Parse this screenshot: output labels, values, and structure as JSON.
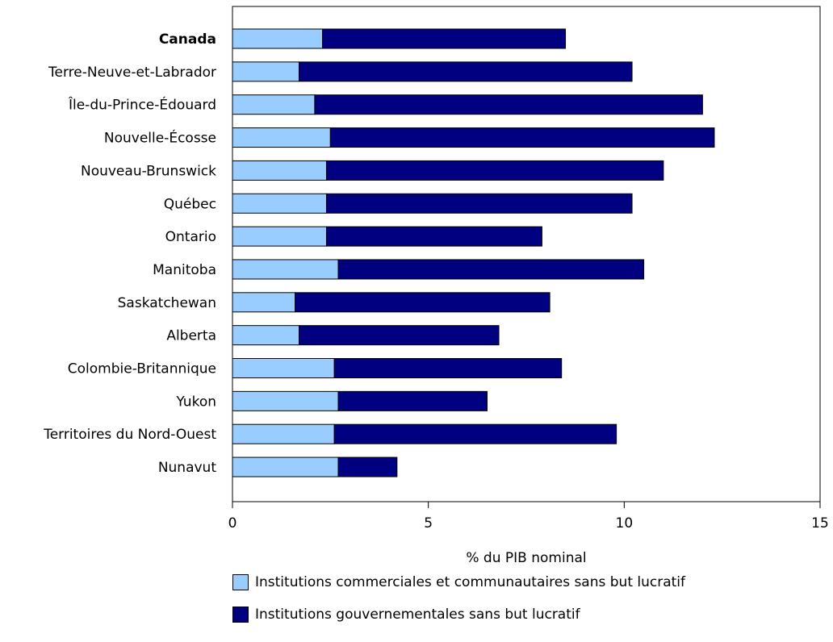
{
  "chart_data": {
    "type": "bar",
    "orientation": "horizontal",
    "stacked": true,
    "categories": [
      "Canada",
      "Terre-Neuve-et-Labrador",
      "Île-du-Prince-Édouard",
      "Nouvelle-Écosse",
      "Nouveau-Brunswick",
      "Québec",
      "Ontario",
      "Manitoba",
      "Saskatchewan",
      "Alberta",
      "Colombie-Britannique",
      "Yukon",
      "Territoires du Nord-Ouest",
      "Nunavut"
    ],
    "bold_categories": [
      "Canada"
    ],
    "series": [
      {
        "name": "Institutions commerciales et communautaires sans but lucratif",
        "color": "#99ccff",
        "values": [
          2.3,
          1.7,
          2.1,
          2.5,
          2.4,
          2.4,
          2.4,
          2.7,
          1.6,
          1.7,
          2.6,
          2.7,
          2.6,
          2.7
        ]
      },
      {
        "name": "Institutions gouvernementales sans but lucratif",
        "color": "#000080",
        "values": [
          6.2,
          8.5,
          9.9,
          9.8,
          8.6,
          7.8,
          5.5,
          7.8,
          6.5,
          5.1,
          5.8,
          3.8,
          7.2,
          1.5
        ]
      }
    ],
    "xlabel": "% du PIB nominal",
    "ylabel": "",
    "xlim": [
      0,
      15
    ],
    "xticks": [
      0,
      5,
      10,
      15
    ],
    "grid": false,
    "legend_position": "bottom"
  }
}
